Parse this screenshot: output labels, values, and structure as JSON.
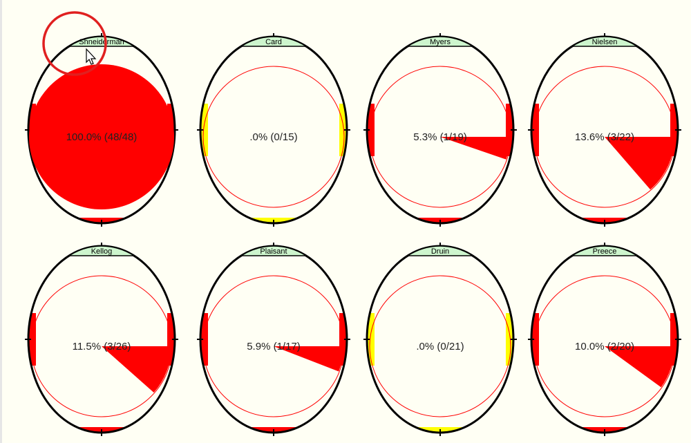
{
  "colors": {
    "background": "#fffff4",
    "outline": "#000000",
    "fill": "#ff0000",
    "ring": "#ff0000",
    "tab": "#cdf5cd",
    "marker_red": "#ff0000",
    "marker_yellow": "#ffff00",
    "highlight": "#e02020"
  },
  "chart_data": {
    "type": "pie",
    "grid": false,
    "legend": "none",
    "items": [
      {
        "name": "Shneiderman",
        "percent_label": "100.0%",
        "count_label": "(48/48)",
        "hits": 48,
        "total": 48,
        "marker": "red",
        "selected": true
      },
      {
        "name": "Card",
        "percent_label": ".0%",
        "count_label": "(0/15)",
        "hits": 0,
        "total": 15,
        "marker": "yellow"
      },
      {
        "name": "Myers",
        "percent_label": "5.3%",
        "count_label": "(1/19)",
        "hits": 1,
        "total": 19,
        "marker": "red"
      },
      {
        "name": "Nielsen",
        "percent_label": "13.6%",
        "count_label": "(3/22)",
        "hits": 3,
        "total": 22,
        "marker": "red"
      },
      {
        "name": "Kellog",
        "percent_label": "11.5%",
        "count_label": "(3/26)",
        "hits": 3,
        "total": 26,
        "marker": "red"
      },
      {
        "name": "Plaisant",
        "percent_label": "5.9%",
        "count_label": "(1/17)",
        "hits": 1,
        "total": 17,
        "marker": "red"
      },
      {
        "name": "Druin",
        "percent_label": ".0%",
        "count_label": "(0/21)",
        "hits": 0,
        "total": 21,
        "marker": "yellow"
      },
      {
        "name": "Preece",
        "percent_label": "10.0%",
        "count_label": "(2/20)",
        "hits": 2,
        "total": 20,
        "marker": "red"
      }
    ]
  }
}
